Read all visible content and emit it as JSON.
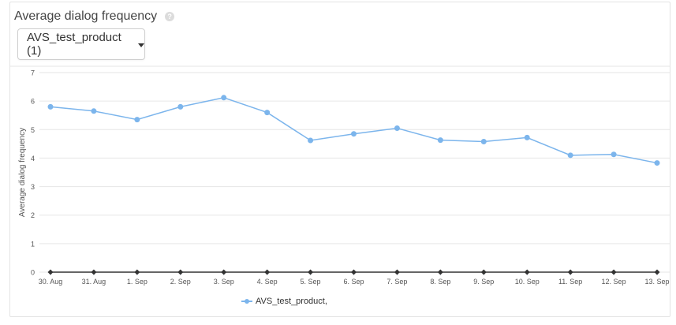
{
  "widget": {
    "title": "Average dialog frequency",
    "help_icon": "?"
  },
  "selector": {
    "selected": "AVS_test_product (1)"
  },
  "colors": {
    "series": "#7cb5ec",
    "baseline_series": "#333333",
    "grid": "#e6e6e6"
  },
  "chart_data": {
    "type": "line",
    "title": "",
    "xlabel": "",
    "ylabel": "Average dialog frequency",
    "categories": [
      "30. Aug",
      "31. Aug",
      "1. Sep",
      "2. Sep",
      "3. Sep",
      "4. Sep",
      "5. Sep",
      "6. Sep",
      "7. Sep",
      "8. Sep",
      "9. Sep",
      "10. Sep",
      "11. Sep",
      "12. Sep",
      "13. Sep"
    ],
    "ylim": [
      0,
      7
    ],
    "yticks": [
      0,
      1,
      2,
      3,
      4,
      5,
      6,
      7
    ],
    "grid": true,
    "legend": "bottom",
    "series": [
      {
        "name": "AVS_test_product,",
        "values": [
          5.8,
          5.65,
          5.35,
          5.8,
          6.12,
          5.6,
          4.62,
          4.85,
          5.05,
          4.63,
          4.58,
          4.72,
          4.1,
          4.13,
          3.83
        ]
      },
      {
        "values": [
          0,
          0,
          0,
          0,
          0,
          0,
          0,
          0,
          0,
          0,
          0,
          0,
          0,
          0,
          0
        ]
      }
    ]
  }
}
